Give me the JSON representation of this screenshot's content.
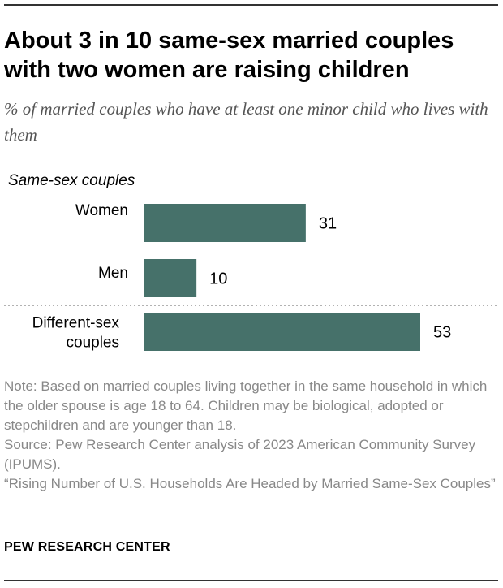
{
  "header": {
    "title": "About 3 in 10 same-sex married couples with two women are raising children",
    "subtitle": "% of married couples who have at least one minor child who lives with them"
  },
  "chart_data": {
    "type": "bar",
    "orientation": "horizontal",
    "group_label": "Same-sex couples",
    "categories": [
      "Women",
      "Men",
      "Different-sex couples"
    ],
    "values": [
      31,
      10,
      53
    ],
    "data_labels": [
      "31",
      "10",
      "53"
    ],
    "xlim": [
      0,
      53
    ],
    "bar_color": "#46716a",
    "grid": false,
    "separator": "dotted line between same-sex and different-sex groups"
  },
  "notes": {
    "note": "Note: Based on married couples living together in the same household in which the older spouse is age 18 to 64. Children may be biological, adopted or stepchildren and are younger than 18.",
    "source": "Source: Pew Research Center analysis of 2023 American Community Survey (IPUMS).",
    "report": "“Rising Number of U.S. Households Are Headed by Married Same-Sex Couples”"
  },
  "footer": {
    "brand": "PEW RESEARCH CENTER"
  },
  "colors": {
    "bar": "#46716a",
    "note_text": "#888888",
    "subtitle_text": "#555555"
  }
}
